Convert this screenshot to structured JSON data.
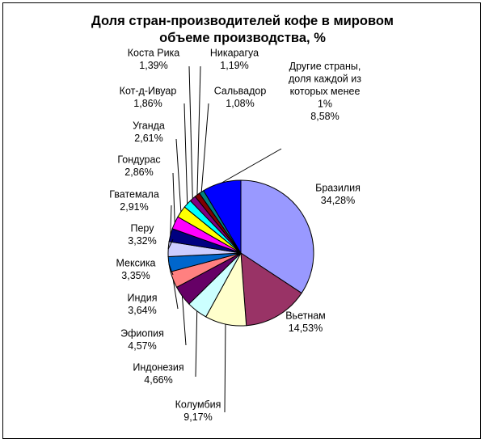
{
  "chart_data": {
    "type": "pie",
    "title_line1": "Доля стран-производителей кофе в мировом",
    "title_line2": "объеме производства, %",
    "slices": [
      {
        "name": "Бразилия",
        "value": "34,28%",
        "v": 34.28,
        "color": "#9999ff"
      },
      {
        "name": "Вьетнам",
        "value": "14,53%",
        "v": 14.53,
        "color": "#993366"
      },
      {
        "name": "Колумбия",
        "value": "9,17%",
        "v": 9.17,
        "color": "#ffffcc"
      },
      {
        "name": "Индонезия",
        "value": "4,66%",
        "v": 4.66,
        "color": "#ccffff"
      },
      {
        "name": "Эфиопия",
        "value": "4,57%",
        "v": 4.57,
        "color": "#660066"
      },
      {
        "name": "Индия",
        "value": "3,64%",
        "v": 3.64,
        "color": "#ff8080"
      },
      {
        "name": "Мексика",
        "value": "3,35%",
        "v": 3.35,
        "color": "#0066cc"
      },
      {
        "name": "Перу",
        "value": "3,32%",
        "v": 3.32,
        "color": "#ccccff"
      },
      {
        "name": "Гватемала",
        "value": "2,91%",
        "v": 2.91,
        "color": "#000080"
      },
      {
        "name": "Гондурас",
        "value": "2,86%",
        "v": 2.86,
        "color": "#ff00ff"
      },
      {
        "name": "Уганда",
        "value": "2,61%",
        "v": 2.61,
        "color": "#ffff00"
      },
      {
        "name": "Кот-д-Ивуар",
        "value": "1,86%",
        "v": 1.86,
        "color": "#00ffff"
      },
      {
        "name": "Коста Рика",
        "value": "1,39%",
        "v": 1.39,
        "color": "#800080"
      },
      {
        "name": "Никарагуа",
        "value": "1,19%",
        "v": 1.19,
        "color": "#800000"
      },
      {
        "name": "Сальвадор",
        "value": "1,08%",
        "v": 1.08,
        "color": "#008080"
      },
      {
        "name": "Другие страны, доля каждой из которых менее 1%",
        "name_lines": [
          "Другие страны,",
          "доля каждой из",
          "которых менее",
          "1%"
        ],
        "value": "8,58%",
        "v": 8.58,
        "color": "#0000ff"
      }
    ]
  }
}
